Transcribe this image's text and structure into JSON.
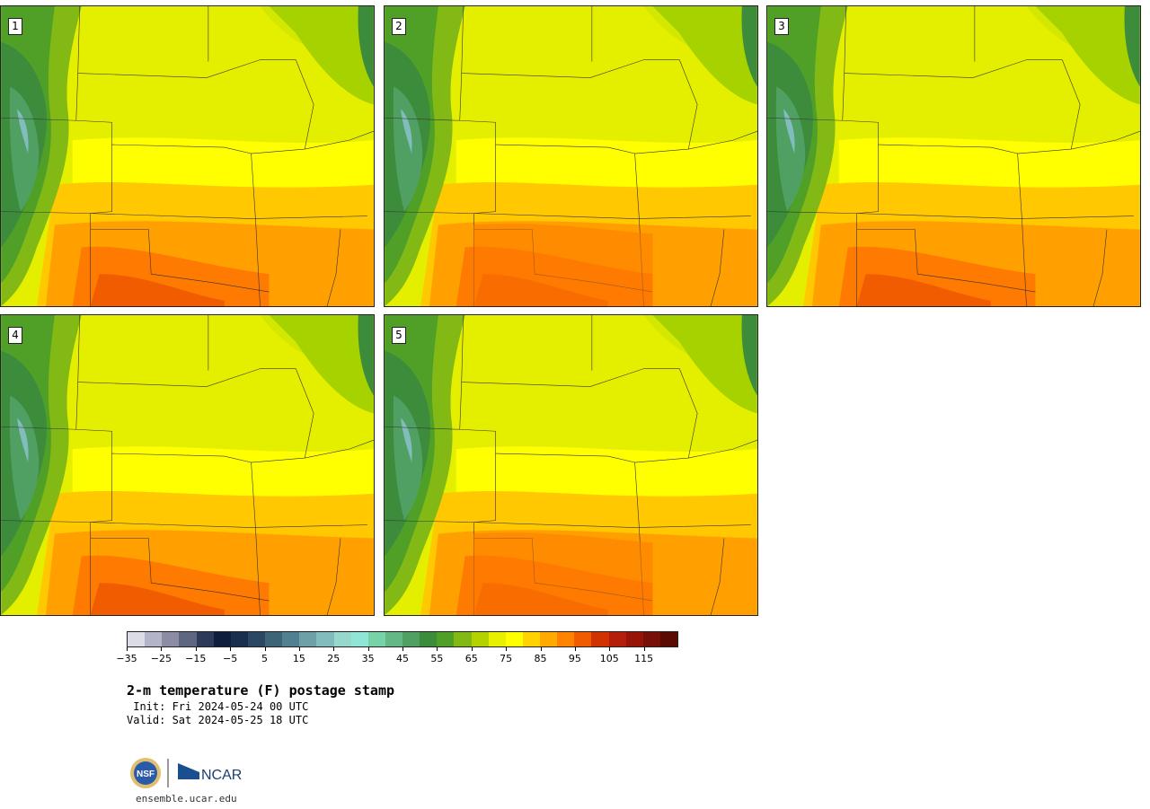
{
  "panels": [
    {
      "label": "1"
    },
    {
      "label": "2"
    },
    {
      "label": "3"
    },
    {
      "label": "4"
    },
    {
      "label": "5"
    }
  ],
  "colorbar": {
    "colors": [
      "#dcdce6",
      "#b4b4c8",
      "#8c8ca5",
      "#5f6682",
      "#2d3a5a",
      "#0f1e3c",
      "#18304e",
      "#2a4864",
      "#3e6478",
      "#528090",
      "#6ea0a8",
      "#82bcbc",
      "#96d8cc",
      "#8fe6d6",
      "#78d2a8",
      "#64b886",
      "#50a064",
      "#3c8c3c",
      "#50a028",
      "#82b914",
      "#b4d200",
      "#e6f000",
      "#ffff00",
      "#ffd200",
      "#ffaa00",
      "#ff8200",
      "#f05a00",
      "#d23200",
      "#b41e0a",
      "#961408",
      "#781008",
      "#5a0c04"
    ],
    "tick_labels": [
      "−35",
      "−25",
      "−15",
      "−5",
      "5",
      "15",
      "25",
      "35",
      "45",
      "55",
      "65",
      "75",
      "85",
      "95",
      "105",
      "115"
    ]
  },
  "title": "2-m temperature (F) postage stamp",
  "init": " Init: Fri 2024-05-24 00 UTC",
  "valid": "Valid: Sat 2024-05-25 18 UTC",
  "logos": {
    "nsf": "NSF",
    "ncar": "NCAR"
  },
  "url": "ensemble.ucar.edu"
}
